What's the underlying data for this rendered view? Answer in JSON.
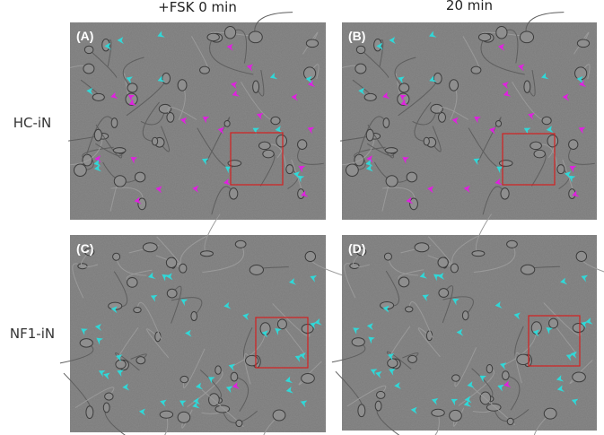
{
  "header": {
    "columns": [
      "+FSK 0 min",
      "20 min"
    ]
  },
  "rows": [
    "HC-iN",
    "NF1-iN"
  ],
  "panels": [
    {
      "label": "(A)"
    },
    {
      "label": "(B)"
    },
    {
      "label": "(C)"
    },
    {
      "label": "(D)"
    }
  ]
}
